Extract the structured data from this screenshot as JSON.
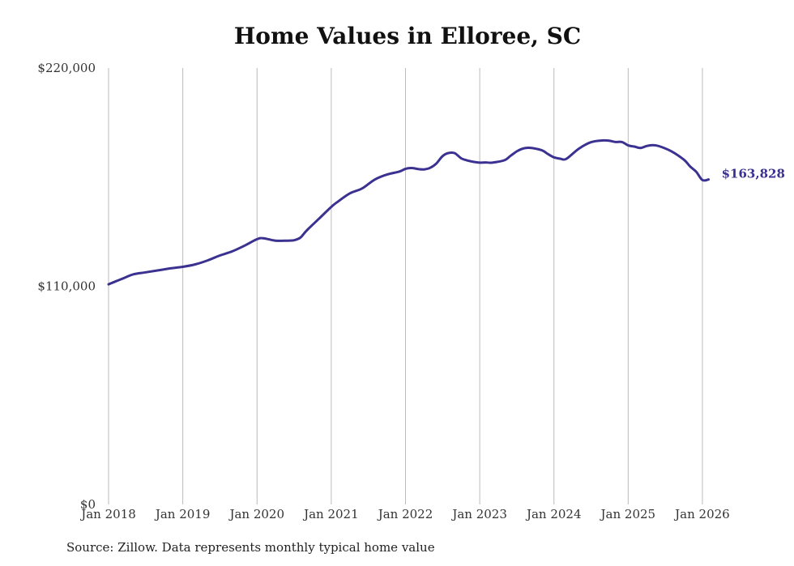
{
  "chart_data": {
    "type": "line",
    "title": "Home Values in Elloree, SC",
    "source": "Source: Zillow. Data represents monthly typical home value",
    "xlabel": "",
    "ylabel": "",
    "ylim": [
      0,
      220000
    ],
    "yticks": [
      {
        "value": 0,
        "label": "$0"
      },
      {
        "value": 110000,
        "label": "$110,000"
      },
      {
        "value": 220000,
        "label": "$220,000"
      }
    ],
    "xticks": [
      "Jan 2018",
      "Jan 2019",
      "Jan 2020",
      "Jan 2021",
      "Jan 2022",
      "Jan 2023",
      "Jan 2024",
      "Jan 2025",
      "Jan 2026"
    ],
    "xlim": [
      "Jan 2018",
      "Feb 2026"
    ],
    "grid": "vertical",
    "line_color": "#3b3191",
    "end_label": "$163,828",
    "series": [
      {
        "x": [
          "2018-01",
          "2018-03",
          "2018-05",
          "2018-07",
          "2018-09",
          "2018-11",
          "2019-01",
          "2019-03",
          "2019-05",
          "2019-07",
          "2019-09",
          "2019-11",
          "2020-01",
          "2020-02",
          "2020-04",
          "2020-06",
          "2020-07",
          "2020-08",
          "2020-09",
          "2020-11",
          "2021-01",
          "2021-02",
          "2021-04",
          "2021-06",
          "2021-08",
          "2021-10",
          "2021-12",
          "2022-01",
          "2022-02",
          "2022-03",
          "2022-04",
          "2022-05",
          "2022-06",
          "2022-07",
          "2022-08",
          "2022-09",
          "2022-10",
          "2022-11",
          "2022-12",
          "2023-01",
          "2023-02",
          "2023-03",
          "2023-05",
          "2023-06",
          "2023-07",
          "2023-08",
          "2023-09",
          "2023-11",
          "2023-12",
          "2024-01",
          "2024-02",
          "2024-03",
          "2024-05",
          "2024-07",
          "2024-09",
          "2024-10",
          "2024-11",
          "2024-12",
          "2025-01",
          "2025-02",
          "2025-03",
          "2025-04",
          "2025-05",
          "2025-06",
          "2025-08",
          "2025-10",
          "2025-11",
          "2025-12",
          "2026-01",
          "2026-02"
        ],
        "values": [
          111000,
          113500,
          116000,
          117000,
          118000,
          119000,
          119800,
          121000,
          123000,
          125500,
          127600,
          130500,
          133700,
          134200,
          133000,
          133000,
          133200,
          134500,
          138000,
          144000,
          150000,
          152500,
          156800,
          159300,
          163700,
          166300,
          167800,
          169200,
          169600,
          169100,
          168900,
          169700,
          171900,
          175600,
          177200,
          177000,
          174500,
          173400,
          172700,
          172300,
          172400,
          172300,
          173500,
          175800,
          178000,
          179400,
          179800,
          178600,
          176700,
          175000,
          174300,
          174200,
          179300,
          182600,
          183500,
          183300,
          182700,
          182700,
          181000,
          180400,
          179700,
          180700,
          181100,
          180600,
          178000,
          173800,
          170400,
          167700,
          163500,
          163828
        ]
      }
    ]
  }
}
